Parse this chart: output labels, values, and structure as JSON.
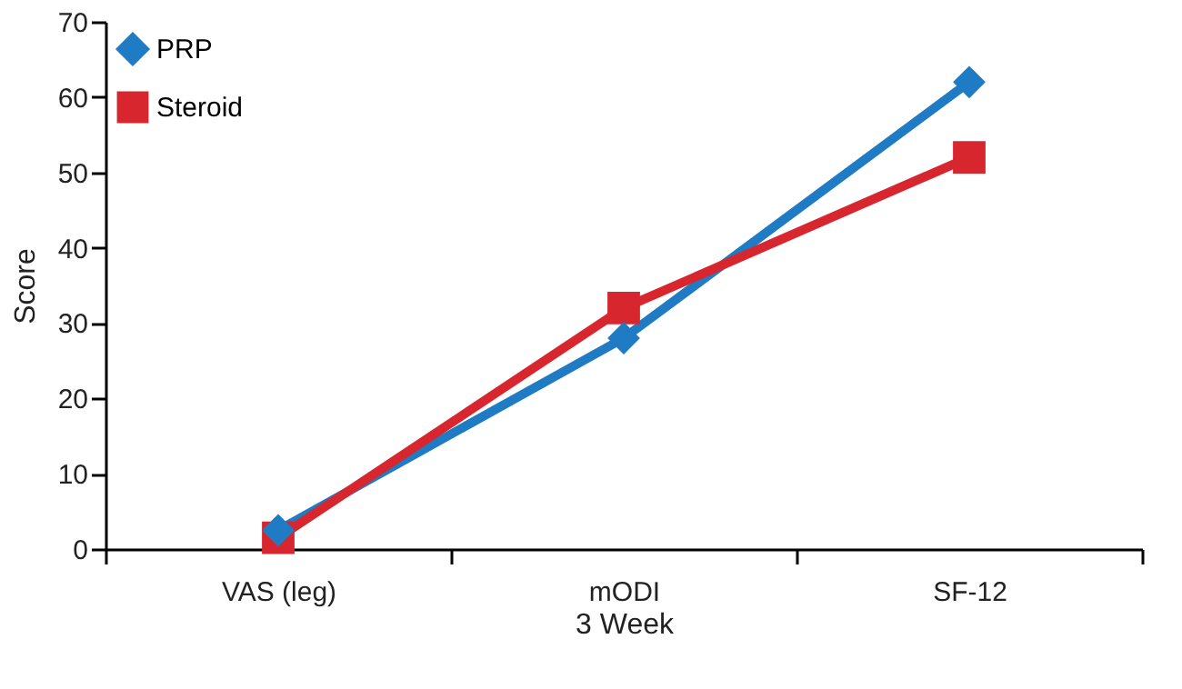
{
  "chart_data": {
    "type": "line",
    "xlabel": "3 Week",
    "ylabel": "Score",
    "categories": [
      "VAS (leg)",
      "mODI",
      "SF-12"
    ],
    "series": [
      {
        "name": "PRP",
        "color": "#1e7bc4",
        "marker": "diamond",
        "values": [
          2.5,
          28,
          62
        ]
      },
      {
        "name": "Steroid",
        "color": "#d8262e",
        "marker": "square",
        "values": [
          1.5,
          32,
          52
        ]
      }
    ],
    "ylim": [
      0,
      70
    ],
    "yticks": [
      0,
      10,
      20,
      30,
      40,
      50,
      60,
      70
    ],
    "grid": false,
    "legend": "top left",
    "line_style": "solid"
  }
}
